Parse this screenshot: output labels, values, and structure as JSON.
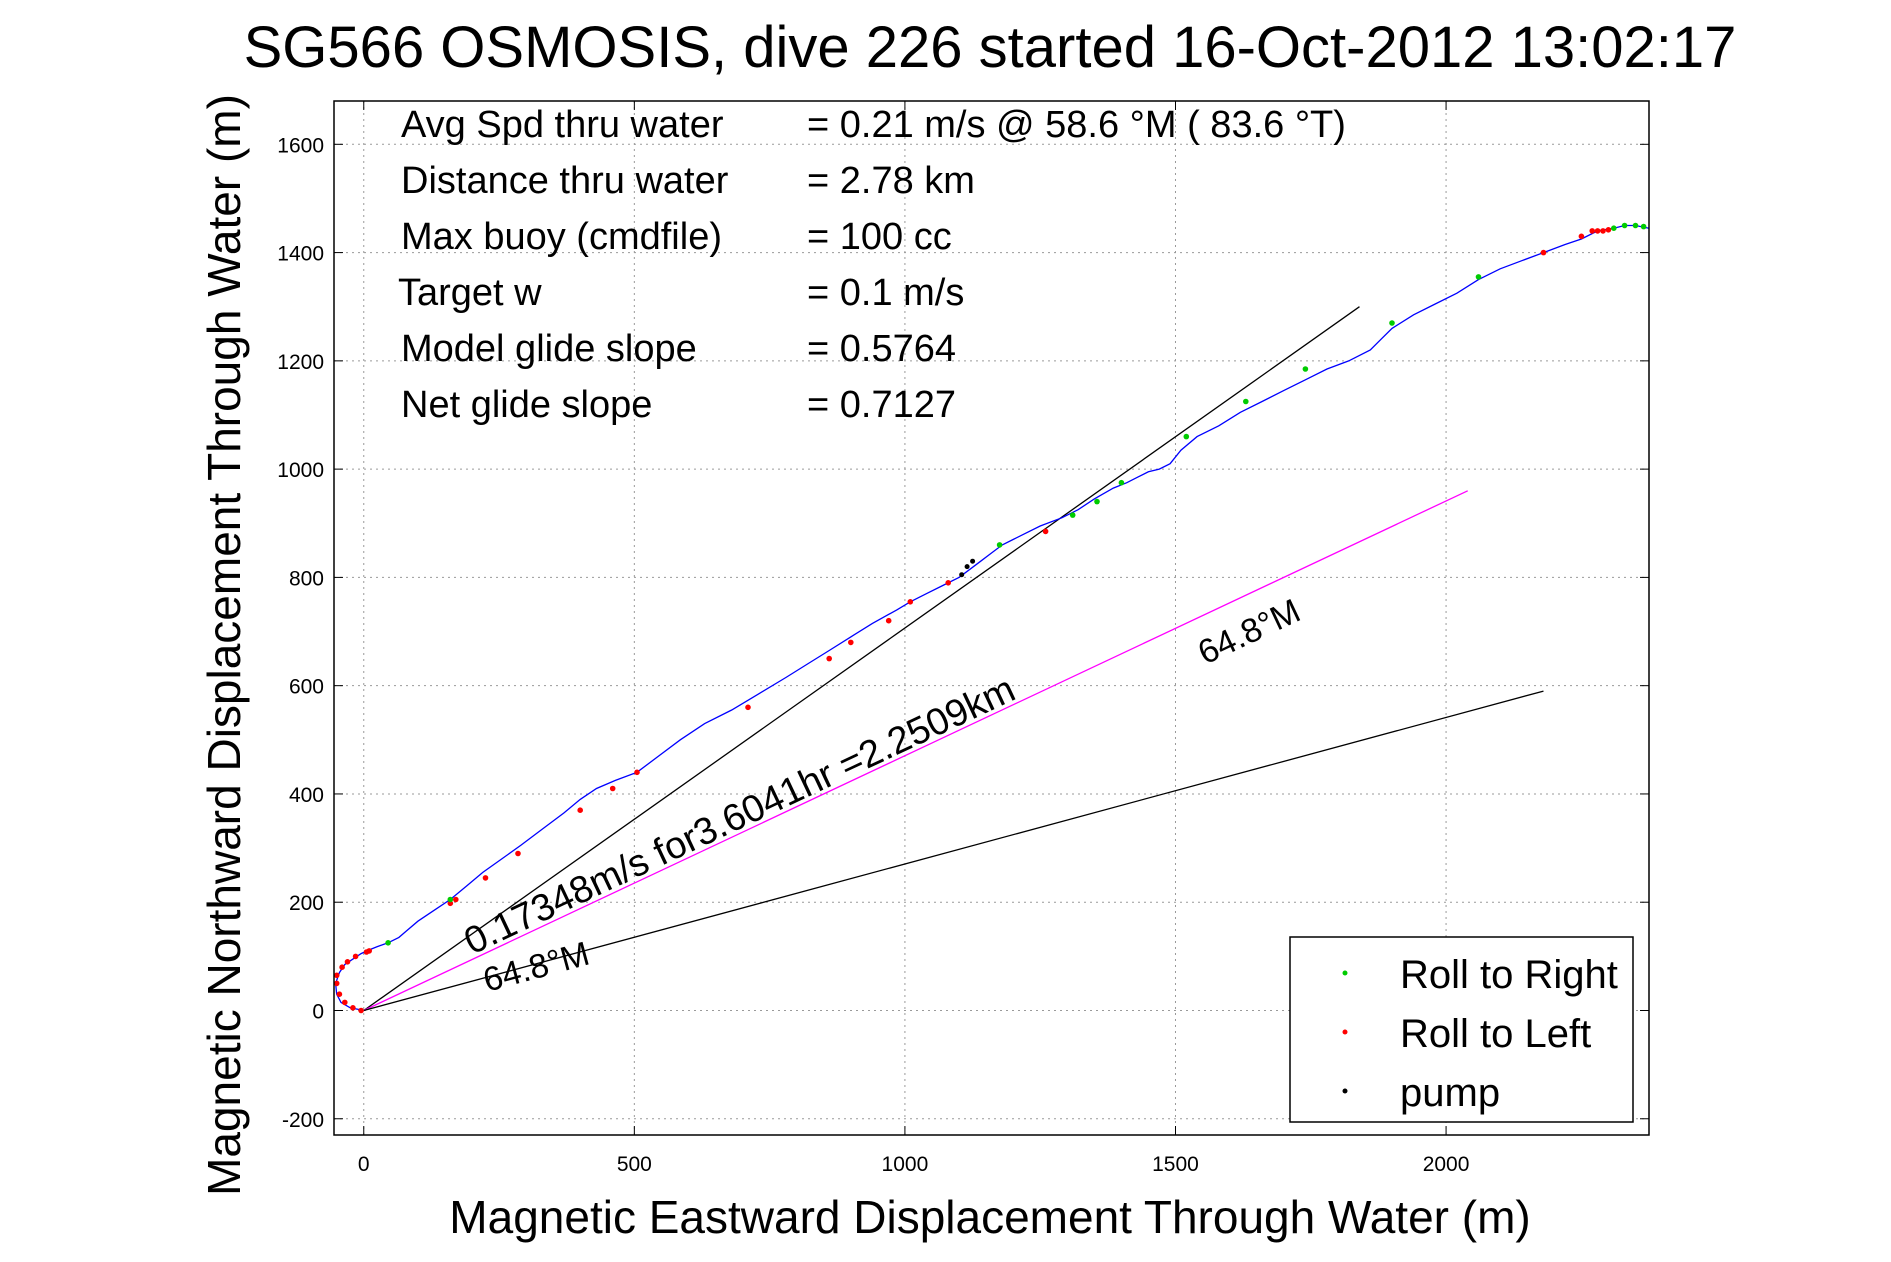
{
  "title": "SG566 OSMOSIS, dive 226 started 16-Oct-2012 13:02:17",
  "chart_data": {
    "type": "line",
    "xlabel": "Magnetic Eastward Displacement Through Water (m)",
    "ylabel": "Magnetic Northward Displacement Through Water (m)",
    "xlim": [
      -55,
      2375
    ],
    "ylim": [
      -230,
      1680
    ],
    "xticks": [
      0,
      500,
      1000,
      1500,
      2000
    ],
    "yticks": [
      -200,
      0,
      200,
      400,
      600,
      800,
      1000,
      1200,
      1400,
      1600
    ],
    "grid": true,
    "annotations": [
      {
        "label": "Avg Spd thru water",
        "value": "=  0.21 m/s @  58.6 °M ( 83.6 °T)"
      },
      {
        "label": "Distance thru water",
        "value": "=  2.78 km"
      },
      {
        "label": "Max buoy (cmdfile)",
        "value": "= 100 cc"
      },
      {
        "label": "Target w",
        "value": "= 0.1 m/s"
      },
      {
        "label": "Model glide slope",
        "value": "= 0.5764"
      },
      {
        "label": "Net glide slope",
        "value": "= 0.7127"
      }
    ],
    "reference_lines": [
      {
        "color": "#000000",
        "x": [
          0,
          1840
        ],
        "y": [
          0,
          1300
        ],
        "label": ""
      },
      {
        "color": "#ff00ff",
        "x": [
          0,
          2040
        ],
        "y": [
          0,
          960
        ],
        "label": "0.17348m/s for3.6041hr =2.2509km"
      },
      {
        "color": "#000000",
        "x": [
          0,
          2180
        ],
        "y": [
          0,
          590
        ],
        "label": ""
      }
    ],
    "angle_labels": [
      "64.8°M",
      "64.8°M"
    ],
    "series": [
      {
        "name": "",
        "color": "#0000ff",
        "x": [
          0,
          -10,
          -25,
          -42,
          -50,
          -52,
          -45,
          -35,
          -20,
          -5,
          10,
          25,
          45,
          65,
          80,
          100,
          130,
          160,
          190,
          220,
          255,
          290,
          330,
          370,
          400,
          430,
          465,
          505,
          545,
          585,
          630,
          680,
          730,
          780,
          820,
          860,
          900,
          940,
          985,
          1010,
          1040,
          1070,
          1100,
          1120,
          1140,
          1160,
          1180,
          1200,
          1220,
          1250,
          1290,
          1320,
          1350,
          1385,
          1410,
          1430,
          1450,
          1470,
          1490,
          1510,
          1540,
          1580,
          1620,
          1660,
          1700,
          1740,
          1780,
          1820,
          1860,
          1880,
          1900,
          1940,
          1980,
          2020,
          2060,
          2100,
          2140,
          2180,
          2220,
          2250,
          2280,
          2310,
          2330,
          2350,
          2375
        ],
        "y": [
          0,
          2,
          5,
          15,
          30,
          50,
          70,
          85,
          95,
          105,
          112,
          118,
          125,
          135,
          148,
          165,
          185,
          205,
          230,
          255,
          280,
          305,
          335,
          365,
          390,
          410,
          425,
          440,
          470,
          500,
          530,
          555,
          585,
          615,
          640,
          665,
          690,
          715,
          740,
          755,
          770,
          785,
          800,
          815,
          830,
          845,
          860,
          870,
          880,
          895,
          910,
          925,
          945,
          965,
          975,
          985,
          995,
          1000,
          1010,
          1035,
          1060,
          1080,
          1105,
          1125,
          1145,
          1165,
          1185,
          1200,
          1220,
          1240,
          1260,
          1285,
          1305,
          1325,
          1350,
          1370,
          1385,
          1400,
          1415,
          1425,
          1440,
          1445,
          1450,
          1450,
          1445
        ]
      }
    ],
    "roll_right_points": {
      "x": [
        45,
        160,
        1175,
        1310,
        1355,
        1400,
        1520,
        1630,
        1740,
        1900,
        2060,
        2310,
        2330,
        2350,
        2365
      ],
      "y": [
        125,
        205,
        860,
        915,
        940,
        975,
        1060,
        1125,
        1185,
        1270,
        1355,
        1445,
        1450,
        1450,
        1448
      ]
    },
    "roll_left_points": {
      "x": [
        -5,
        -20,
        -35,
        -45,
        -50,
        -50,
        -40,
        -30,
        -15,
        5,
        10,
        160,
        170,
        225,
        285,
        400,
        460,
        505,
        710,
        860,
        900,
        970,
        1010,
        1080,
        1260,
        2180,
        2250,
        2270,
        2280,
        2290,
        2300
      ],
      "y": [
        0,
        5,
        15,
        30,
        50,
        65,
        80,
        90,
        100,
        108,
        110,
        198,
        205,
        245,
        290,
        370,
        410,
        440,
        560,
        650,
        680,
        720,
        755,
        790,
        885,
        1400,
        1430,
        1440,
        1440,
        1440,
        1442
      ]
    },
    "pump_points": {
      "x": [
        1105,
        1115,
        1125
      ],
      "y": [
        805,
        820,
        830
      ]
    },
    "legend": {
      "placement": "bottom-right",
      "entries": [
        {
          "label": "Roll to Right",
          "color": "#00cc00"
        },
        {
          "label": "Roll to Left",
          "color": "#ff0000"
        },
        {
          "label": "pump",
          "color": "#000000"
        }
      ]
    }
  }
}
